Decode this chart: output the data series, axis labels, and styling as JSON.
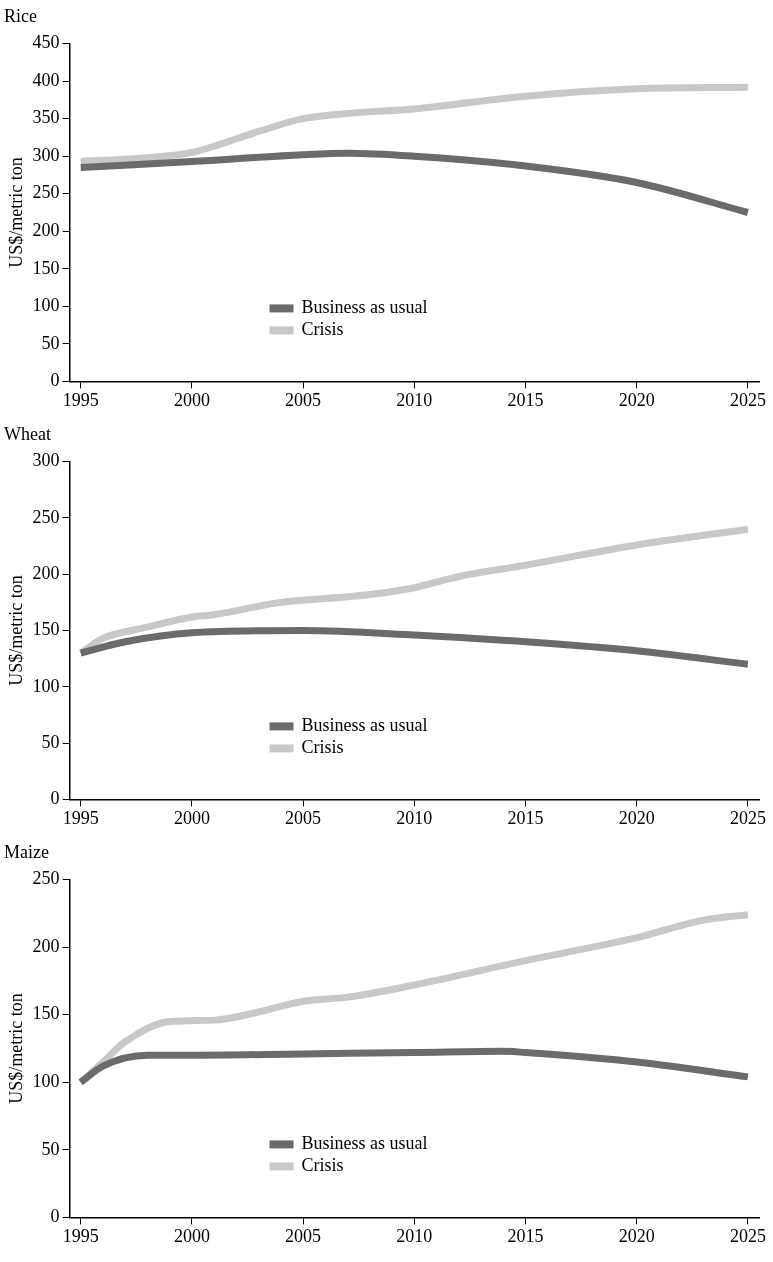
{
  "chart_data": [
    {
      "type": "line",
      "title": "Rice",
      "ylabel": "US$/metric ton",
      "xlim": [
        1994.5,
        2025.5
      ],
      "xticks": [
        1995,
        2000,
        2005,
        2010,
        2015,
        2020,
        2025
      ],
      "ylim": [
        0,
        450
      ],
      "yticks": [
        0,
        50,
        100,
        150,
        200,
        250,
        300,
        350,
        400,
        450
      ],
      "grid": false,
      "legend": "bottom",
      "marker": "none",
      "series": [
        {
          "name": "Business as usual",
          "color": "#6b6b6b",
          "x": [
            1995,
            2000,
            2005,
            2007,
            2010,
            2015,
            2020,
            2025
          ],
          "values": [
            285,
            293,
            302,
            304,
            300,
            287,
            265,
            225
          ]
        },
        {
          "name": "Crisis",
          "color": "#c8c8c8",
          "x": [
            1995,
            1998,
            2000,
            2003,
            2005,
            2007,
            2010,
            2015,
            2020,
            2025
          ],
          "values": [
            293,
            298,
            305,
            333,
            350,
            357,
            363,
            380,
            390,
            392
          ]
        }
      ]
    },
    {
      "type": "line",
      "title": "Wheat",
      "ylabel": "US$/metric ton",
      "xlim": [
        1994.5,
        2025.5
      ],
      "xticks": [
        1995,
        2000,
        2005,
        2010,
        2015,
        2020,
        2025
      ],
      "ylim": [
        0,
        300
      ],
      "yticks": [
        0,
        50,
        100,
        150,
        200,
        250,
        300
      ],
      "grid": false,
      "legend": "bottom",
      "marker": "none",
      "series": [
        {
          "name": "Business as usual",
          "color": "#6b6b6b",
          "x": [
            1995,
            1997,
            2000,
            2005,
            2010,
            2015,
            2020,
            2025
          ],
          "values": [
            130,
            140,
            148,
            150,
            146,
            140,
            132,
            120
          ]
        },
        {
          "name": "Crisis",
          "color": "#c8c8c8",
          "x": [
            1995,
            1996,
            1998,
            2000,
            2001,
            2004,
            2007,
            2008,
            2010,
            2012,
            2015,
            2020,
            2025
          ],
          "values": [
            130,
            143,
            153,
            162,
            164,
            175,
            180,
            182,
            188,
            198,
            208,
            226,
            240
          ]
        }
      ]
    },
    {
      "type": "line",
      "title": "Maize",
      "ylabel": "US$/metric ton",
      "xlim": [
        1994.5,
        2025.5
      ],
      "xticks": [
        1995,
        2000,
        2005,
        2010,
        2015,
        2020,
        2025
      ],
      "ylim": [
        0,
        250
      ],
      "yticks": [
        0,
        50,
        100,
        150,
        200,
        250
      ],
      "grid": false,
      "legend": "bottom",
      "marker": "none",
      "series": [
        {
          "name": "Business as usual",
          "color": "#6b6b6b",
          "x": [
            1995,
            1996,
            1998,
            2000,
            2005,
            2010,
            2014,
            2015,
            2020,
            2025
          ],
          "values": [
            100,
            112,
            120,
            120,
            121,
            122,
            123,
            122,
            115,
            104
          ]
        },
        {
          "name": "Crisis",
          "color": "#c8c8c8",
          "x": [
            1995,
            1996,
            1997,
            1999,
            2001,
            2003,
            2005,
            2007,
            2010,
            2015,
            2020,
            2023,
            2025
          ],
          "values": [
            100,
            115,
            130,
            145,
            146,
            152,
            160,
            163,
            172,
            190,
            207,
            220,
            224
          ]
        }
      ]
    }
  ]
}
